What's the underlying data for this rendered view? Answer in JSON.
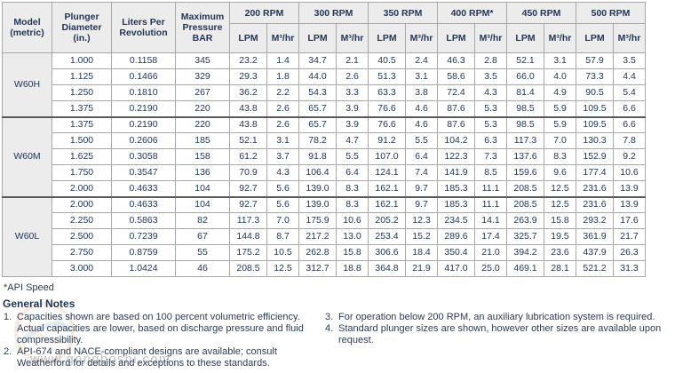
{
  "table": {
    "headers": {
      "model": "Model\n(metric)",
      "plunger": "Plunger\nDiameter\n(in.)",
      "liters": "Liters Per\nRevolution",
      "pressure": "Maximum\nPressure\nBAR",
      "rpm_groups": [
        "200 RPM",
        "300 RPM",
        "350 RPM",
        "400 RPM*",
        "450 RPM",
        "500 RPM"
      ],
      "lpm": "LPM",
      "m3hr": "M³/hr"
    },
    "groups": [
      {
        "model": "W60H",
        "rows": [
          {
            "plunger": "1.000",
            "liters": "0.1158",
            "pressure": "345",
            "values": [
              "23.2",
              "1.4",
              "34.7",
              "2.1",
              "40.5",
              "2.4",
              "46.3",
              "2.8",
              "52.1",
              "3.1",
              "57.9",
              "3.5"
            ]
          },
          {
            "plunger": "1.125",
            "liters": "0.1466",
            "pressure": "329",
            "values": [
              "29.3",
              "1.8",
              "44.0",
              "2.6",
              "51.3",
              "3.1",
              "58.6",
              "3.5",
              "66.0",
              "4.0",
              "73.3",
              "4.4"
            ]
          },
          {
            "plunger": "1.250",
            "liters": "0.1810",
            "pressure": "267",
            "values": [
              "36.2",
              "2.2",
              "54.3",
              "3.3",
              "63.3",
              "3.8",
              "72.4",
              "4.3",
              "81.4",
              "4.9",
              "90.5",
              "5.4"
            ]
          },
          {
            "plunger": "1.375",
            "liters": "0.2190",
            "pressure": "220",
            "values": [
              "43.8",
              "2.6",
              "65.7",
              "3.9",
              "76.6",
              "4.6",
              "87.6",
              "5.3",
              "98.5",
              "5.9",
              "109.5",
              "6.6"
            ]
          }
        ]
      },
      {
        "model": "W60M",
        "rows": [
          {
            "plunger": "1.375",
            "liters": "0.2190",
            "pressure": "220",
            "values": [
              "43.8",
              "2.6",
              "65.7",
              "3.9",
              "76.6",
              "4.6",
              "87.6",
              "5.3",
              "98.5",
              "5.9",
              "109.5",
              "6.6"
            ]
          },
          {
            "plunger": "1.500",
            "liters": "0.2606",
            "pressure": "185",
            "values": [
              "52.1",
              "3.1",
              "78.2",
              "4.7",
              "91.2",
              "5.5",
              "104.2",
              "6.3",
              "117.3",
              "7.0",
              "130.3",
              "7.8"
            ]
          },
          {
            "plunger": "1.625",
            "liters": "0.3058",
            "pressure": "158",
            "values": [
              "61.2",
              "3.7",
              "91.8",
              "5.5",
              "107.0",
              "6.4",
              "122.3",
              "7.3",
              "137.6",
              "8.3",
              "152.9",
              "9.2"
            ]
          },
          {
            "plunger": "1.750",
            "liters": "0.3547",
            "pressure": "136",
            "values": [
              "70.9",
              "4.3",
              "106.4",
              "6.4",
              "124.1",
              "7.4",
              "141.9",
              "8.5",
              "159.6",
              "9.6",
              "177.4",
              "10.6"
            ]
          },
          {
            "plunger": "2.000",
            "liters": "0.4633",
            "pressure": "104",
            "values": [
              "92.7",
              "5.6",
              "139.0",
              "8.3",
              "162.1",
              "9.7",
              "185.3",
              "11.1",
              "208.5",
              "12.5",
              "231.6",
              "13.9"
            ]
          }
        ]
      },
      {
        "model": "W60L",
        "rows": [
          {
            "plunger": "2.000",
            "liters": "0.4633",
            "pressure": "104",
            "values": [
              "92.7",
              "5.6",
              "139.0",
              "8.3",
              "162.1",
              "9.7",
              "185.3",
              "11.1",
              "208.5",
              "12.5",
              "231.6",
              "13.9"
            ]
          },
          {
            "plunger": "2.250",
            "liters": "0.5863",
            "pressure": "82",
            "values": [
              "117.3",
              "7.0",
              "175.9",
              "10.6",
              "205.2",
              "12.3",
              "234.5",
              "14.1",
              "263.9",
              "15.8",
              "293.2",
              "17.6"
            ]
          },
          {
            "plunger": "2.500",
            "liters": "0.7239",
            "pressure": "67",
            "values": [
              "144.8",
              "8.7",
              "217.2",
              "13.0",
              "253.4",
              "15.2",
              "289.6",
              "17.4",
              "325.7",
              "19.5",
              "361.9",
              "21.7"
            ]
          },
          {
            "plunger": "2.750",
            "liters": "0.8759",
            "pressure": "55",
            "values": [
              "175.2",
              "10.5",
              "262.8",
              "15.8",
              "306.6",
              "18.4",
              "350.4",
              "21.0",
              "394.2",
              "23.6",
              "437.9",
              "26.3"
            ]
          },
          {
            "plunger": "3.000",
            "liters": "1.0424",
            "pressure": "46",
            "values": [
              "208.5",
              "12.5",
              "312.7",
              "18.8",
              "364.8",
              "21.9",
              "417.0",
              "25.0",
              "469.1",
              "28.1",
              "521.2",
              "31.3"
            ]
          }
        ]
      }
    ]
  },
  "footnote": "*API Speed",
  "notes": {
    "title": "General Notes",
    "left": [
      {
        "num": "1.",
        "text": "Capacities shown are based on 100 percent volumetric efficiency. Actual capacities are lower, based on discharge pressure and fluid compressibility."
      },
      {
        "num": "2.",
        "text": "API-674 and NACE-compliant designs are available; consult Weatherford for details and exceptions to these standards."
      }
    ],
    "right": [
      {
        "num": "3.",
        "text": "For operation below 200 RPM, an auxiliary lubrication system is required."
      },
      {
        "num": "4.",
        "text": "Standard plunger sizes are shown, however other sizes are available upon request."
      }
    ]
  },
  "watermark": {
    "url": "www.gongboshi.com"
  },
  "colors": {
    "text": "#22365a",
    "header_bg": "#ececec",
    "inner_border": "#a8a8a8",
    "outer_border": "#7a7a7a",
    "group_border": "#595959",
    "watermark_text": "#c2c2c2",
    "watermark_orange": "#e0a878",
    "watermark_blue": "#8fb3cf"
  }
}
